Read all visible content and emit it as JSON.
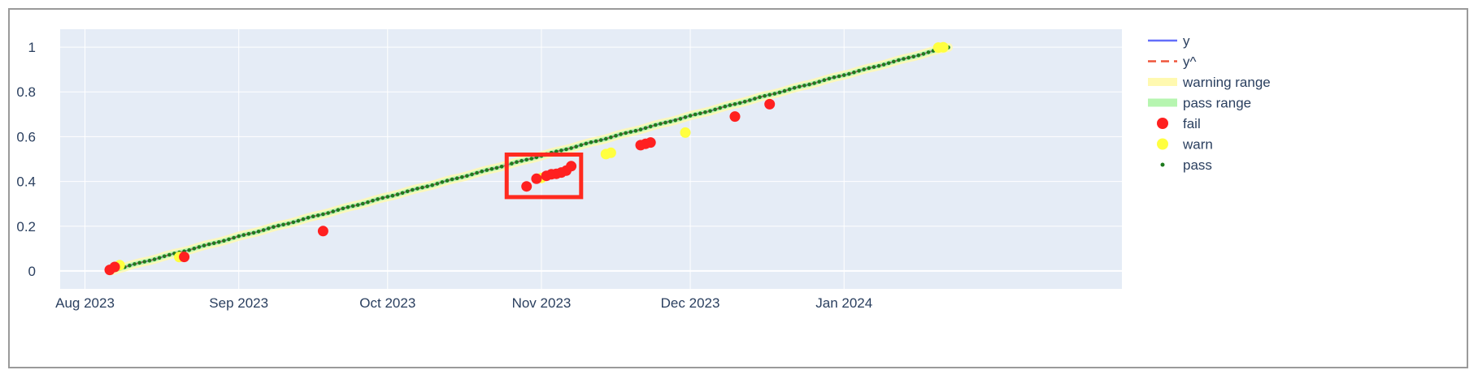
{
  "colors": {
    "plot_bg": "#e5ecf6",
    "grid": "#ffffff",
    "y_line": "#636efa",
    "yhat_line": "#ef553b",
    "warning_band": "#fff9b0",
    "pass_band": "#b6f5b0",
    "fail": "#ff2020",
    "warn": "#ffff40",
    "pass": "#1e7a1e",
    "highlight": "#ff2a1f"
  },
  "chart_data": {
    "type": "line",
    "xaxis": {
      "type": "date",
      "range": [
        "2023-07-27",
        "2024-02-26"
      ],
      "ticks": [
        {
          "date": "2023-08-01",
          "label": "Aug 2023"
        },
        {
          "date": "2023-09-01",
          "label": "Sep 2023"
        },
        {
          "date": "2023-10-01",
          "label": "Oct 2023"
        },
        {
          "date": "2023-11-01",
          "label": "Nov 2023"
        },
        {
          "date": "2023-12-01",
          "label": "Dec 2023"
        },
        {
          "date": "2024-01-01",
          "label": "Jan 2024"
        }
      ]
    },
    "yaxis": {
      "range": [
        -0.08,
        1.08
      ],
      "ticks": [
        {
          "value": 0,
          "label": "0"
        },
        {
          "value": 0.2,
          "label": "0.2"
        },
        {
          "value": 0.4,
          "label": "0.4"
        },
        {
          "value": 0.6,
          "label": "0.6"
        },
        {
          "value": 0.8,
          "label": "0.8"
        },
        {
          "value": 1,
          "label": "1"
        }
      ]
    },
    "grid": true,
    "legend_position": "right",
    "legend": [
      {
        "key": "y",
        "label": "y",
        "symbol": "line"
      },
      {
        "key": "yhat",
        "label": "y^",
        "symbol": "dash"
      },
      {
        "key": "warning",
        "label": "warning range",
        "symbol": "band"
      },
      {
        "key": "pass_range",
        "label": "pass range",
        "symbol": "band"
      },
      {
        "key": "fail",
        "label": "fail",
        "symbol": "marker"
      },
      {
        "key": "warn",
        "label": "warn",
        "symbol": "marker"
      },
      {
        "key": "pass",
        "label": "pass",
        "symbol": "dot"
      }
    ],
    "series_range": {
      "start": "2023-08-06",
      "end": "2024-01-22",
      "y_start": 0.0,
      "y_end": 1.0
    },
    "fail_points": [
      [
        "2023-08-06",
        0.005
      ],
      [
        "2023-08-07",
        0.018
      ],
      [
        "2023-08-21",
        0.063
      ],
      [
        "2023-09-18",
        0.178
      ],
      [
        "2023-10-29",
        0.378
      ],
      [
        "2023-10-31",
        0.412
      ],
      [
        "2023-11-02",
        0.425
      ],
      [
        "2023-11-03",
        0.432
      ],
      [
        "2023-11-04",
        0.434
      ],
      [
        "2023-11-05",
        0.44
      ],
      [
        "2023-11-06",
        0.448
      ],
      [
        "2023-11-07",
        0.468
      ],
      [
        "2023-11-21",
        0.562
      ],
      [
        "2023-11-22",
        0.568
      ],
      [
        "2023-11-23",
        0.574
      ],
      [
        "2023-12-10",
        0.69
      ],
      [
        "2023-12-17",
        0.745
      ]
    ],
    "warn_points": [
      [
        "2023-08-08",
        0.026
      ],
      [
        "2023-08-20",
        0.062
      ],
      [
        "2023-11-01",
        0.416
      ],
      [
        "2023-11-14",
        0.522
      ],
      [
        "2023-11-15",
        0.528
      ],
      [
        "2023-11-30",
        0.618
      ],
      [
        "2024-01-20",
        0.998
      ],
      [
        "2024-01-21",
        0.999
      ]
    ],
    "annotation": {
      "shape": "rectangle",
      "x0": "2023-10-25",
      "x1": "2023-11-09",
      "y0": 0.33,
      "y1": 0.52
    }
  }
}
